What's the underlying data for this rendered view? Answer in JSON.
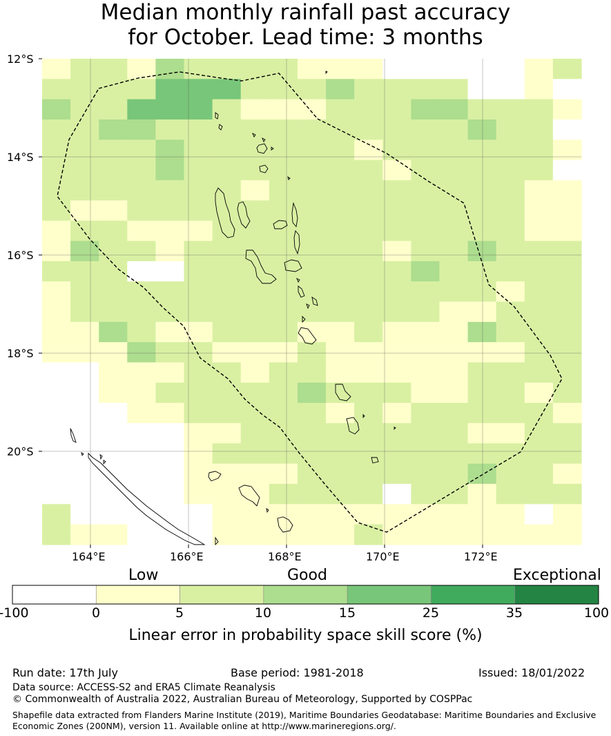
{
  "title_line1": "Median monthly rainfall past accuracy",
  "title_line2": "for October. Lead time: 3 months",
  "lat_labels": [
    "12°S",
    "14°S",
    "16°S",
    "18°S",
    "20°S"
  ],
  "lon_labels": [
    "164°E",
    "166°E",
    "168°E",
    "170°E",
    "172°E"
  ],
  "colorbar": {
    "category_labels": [
      "Low",
      "Good",
      "Exceptional"
    ],
    "ticks": [
      "-100",
      "0",
      "5",
      "10",
      "15",
      "25",
      "35",
      "100"
    ],
    "colors": [
      "#ffffff",
      "#ffffcc",
      "#d9f0a3",
      "#addd8e",
      "#78c679",
      "#41ab5d",
      "#238443"
    ],
    "axis_label": "Linear error in probability space skill score (%)"
  },
  "skill_grid_classes": [
    "1221322221110000012",
    "2222444222322220010",
    "3224442111222332221",
    "2233222222222223220",
    "2222322222212222221",
    "2222322222221222220",
    "2222222122222222211",
    "2112222222222222211",
    "1221112222222222211",
    "1322122222221223222",
    "2220022222222322222",
    "1222222222222222122",
    "1222222222222211222",
    "1132112221121113222",
    "1113221112111111122",
    "0011122122111112222",
    "0011222223222112212",
    "0001122222121222221",
    "0000011222222221122",
    "0000012222222222222",
    "0000011112222223221",
    "0000011122220221222",
    "2000001111111111101",
    "2110001111121111111"
  ],
  "footer": {
    "run_date": "Run date: 17th July",
    "base_period": "Base period: 1981-2018",
    "issued": "Issued: 18/01/2022",
    "data_source": "Data source: ACCESS-S2 and ERA5 Climate Reanalysis",
    "copyright": "© Commonwealth of Australia 2022, Australian Bureau of Meteorology, Supported by COSPPac",
    "shapefile_note": "Shapefile data extracted from Flanders Marine Institute (2019), Maritime Boundaries Geodatabase: Maritime Boundaries and Exclusive Economic Zones (200NM), version 11. Available online at http://www.marineregions.org/."
  }
}
